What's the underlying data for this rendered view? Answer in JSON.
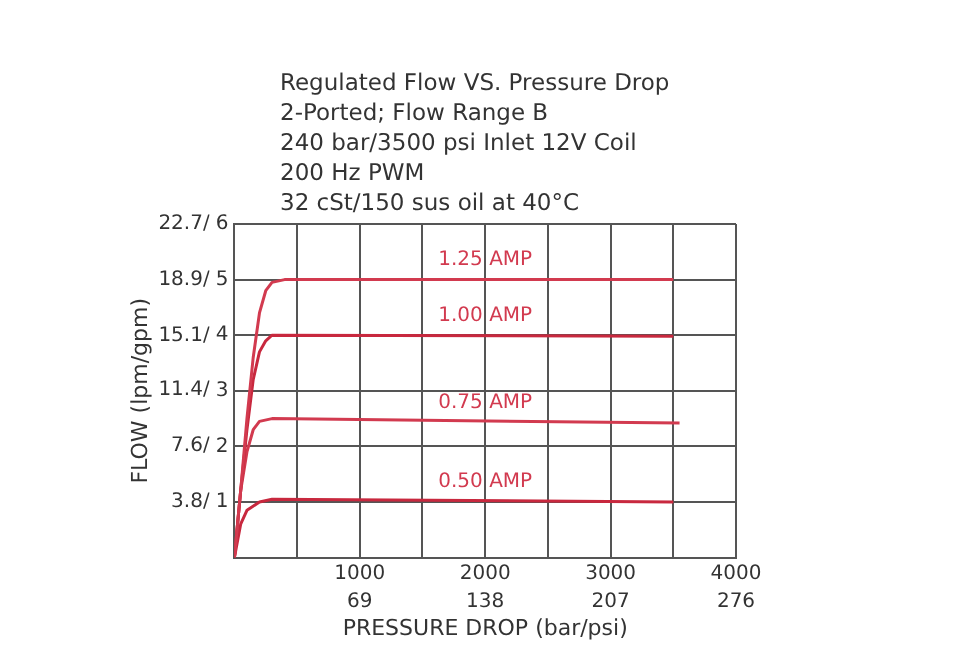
{
  "chart_data": {
    "type": "line",
    "title": "Regulated Flow VS. Pressure Drop",
    "subtitle": "2-Ported; Flow Range B\n240 bar/3500 psi Inlet 12V Coil\n200 Hz PWM\n32 cSt/150 sus oil at 40°C",
    "xlabel": "PRESSURE DROP (bar/psi)",
    "y2label": "FLOW (lpm/gpm)",
    "xlim": [
      0,
      4000
    ],
    "xticks": [
      {
        "value": 0,
        "label": null
      },
      {
        "value": 500,
        "label": null
      },
      1000,
      {
        "value": 1500,
        "label": null
      },
      2000,
      {
        "value": 2500,
        "label": null
      },
      3000,
      {
        "value": 3500,
        "label": null
      },
      4000
    ],
    "x2lim": [
      0,
      276
    ],
    "x2ticks": [
      69,
      138,
      207,
      276
    ],
    "ylim": [
      0,
      6
    ],
    "yticks": [
      {
        "value": 0,
        "label": null
      },
      1,
      2,
      3,
      4,
      5,
      6
    ],
    "y2lim": [
      0,
      22.7
    ],
    "y2ticks": [
      {
        "value": 3.8,
        "label": "3.8/"
      },
      {
        "value": 7.6,
        "label": "7.6/"
      },
      {
        "value": 11.4,
        "label": "11.4/"
      },
      {
        "value": 15.1,
        "label": "15.1/"
      },
      {
        "value": 18.9,
        "label": "18.9/"
      },
      {
        "value": 22.7,
        "label": "22.7/"
      }
    ],
    "grid": true,
    "legend": false,
    "marker": "none",
    "line_style": "solid",
    "series": [
      {
        "color": "#d23a4f",
        "x": [
          0,
          50,
          100,
          150,
          200,
          250,
          300,
          400,
          3500
        ],
        "values": [
          0,
          1.2,
          2.5,
          3.6,
          4.4,
          4.8,
          4.95,
          5.0,
          5.0
        ]
      },
      {
        "color": "#c8283e",
        "x": [
          0,
          50,
          100,
          150,
          200,
          250,
          300,
          3500
        ],
        "values": [
          0,
          1.2,
          2.3,
          3.2,
          3.7,
          3.9,
          4.0,
          3.98
        ]
      },
      {
        "color": "#d23a4f",
        "x": [
          0,
          50,
          100,
          150,
          200,
          300,
          3550
        ],
        "values": [
          0,
          1.2,
          1.9,
          2.3,
          2.45,
          2.5,
          2.42
        ]
      },
      {
        "color": "#c8283e",
        "x": [
          0,
          50,
          100,
          200,
          300,
          3500
        ],
        "values": [
          0,
          0.6,
          0.85,
          1.0,
          1.05,
          1.0
        ]
      }
    ],
    "annotations": [
      "1.25 AMP",
      "1.00 AMP",
      "0.75 AMP",
      "0.50 AMP"
    ]
  }
}
